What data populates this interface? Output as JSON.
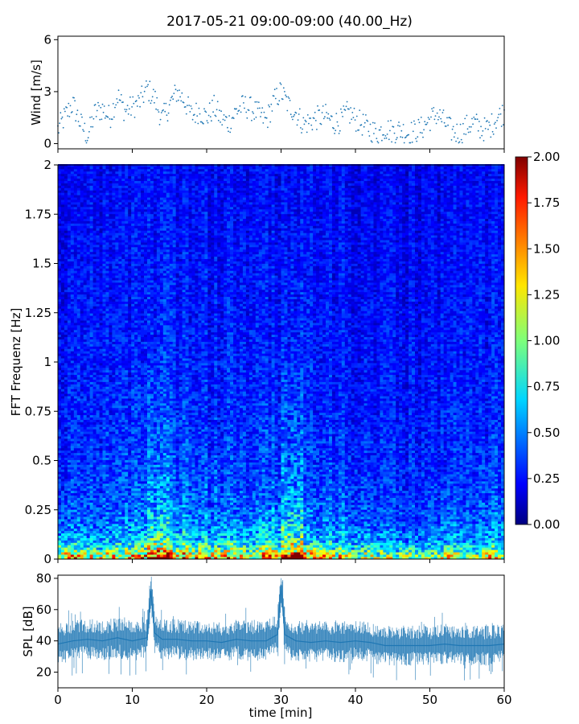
{
  "figure": {
    "title": "2017-05-21 09:00-09:00 (40.00_Hz)"
  },
  "chart_data": [
    {
      "type": "scatter",
      "panel": "wind",
      "ylabel": "Wind [m/s]",
      "xlabel": "",
      "xlim": [
        0,
        60
      ],
      "ylim": [
        -0.3,
        6.2
      ],
      "yticks": [
        0,
        3,
        6
      ],
      "ytick_labels": [
        "0",
        "3",
        "6"
      ],
      "grid": false,
      "marker_color": "#1f77b4",
      "series": [
        {
          "x": [
            0,
            1,
            2,
            3,
            4,
            5,
            6,
            7,
            8,
            9,
            10,
            11,
            12,
            13,
            14,
            15,
            16,
            17,
            18,
            19,
            20,
            21,
            22,
            23,
            24,
            25,
            26,
            27,
            28,
            29,
            30,
            31,
            32,
            33,
            34,
            35,
            36,
            37,
            38,
            39,
            40,
            41,
            42,
            43,
            44,
            45,
            46,
            47,
            48,
            49,
            50,
            51,
            52,
            53,
            54,
            55,
            56,
            57,
            58,
            59,
            60
          ],
          "y": [
            0.8,
            1.6,
            2.3,
            1.2,
            0.4,
            1.8,
            2.0,
            1.5,
            2.8,
            1.9,
            2.1,
            2.4,
            3.2,
            2.6,
            1.4,
            2.2,
            3.0,
            2.5,
            1.6,
            1.9,
            1.5,
            2.1,
            1.4,
            1.2,
            1.9,
            2.2,
            2.0,
            1.7,
            1.3,
            2.4,
            3.0,
            2.2,
            1.8,
            1.1,
            1.3,
            1.5,
            1.6,
            1.2,
            1.3,
            1.8,
            1.4,
            1.1,
            0.8,
            0.6,
            0.9,
            0.7,
            0.8,
            0.6,
            0.7,
            0.9,
            1.4,
            1.7,
            1.2,
            0.7,
            0.6,
            1.0,
            1.2,
            0.8,
            0.9,
            1.5,
            1.8
          ]
        }
      ]
    },
    {
      "type": "heatmap",
      "panel": "spectrogram",
      "ylabel": "FFT Frequenz [Hz]",
      "xlim": [
        0,
        60
      ],
      "ylim": [
        0,
        2
      ],
      "yticks": [
        0,
        0.25,
        0.5,
        0.75,
        1,
        1.25,
        1.5,
        1.75,
        2
      ],
      "ytick_labels": [
        "0",
        "0.25",
        "0.5",
        "0.75",
        "1",
        "1.25",
        "1.5",
        "1.75",
        "2"
      ],
      "colormap": "jet",
      "colorbar": {
        "range": [
          0,
          2
        ],
        "ticks": [
          0,
          0.25,
          0.5,
          0.75,
          1,
          1.25,
          1.5,
          1.75,
          2
        ],
        "tick_labels": [
          "0.00",
          "0.25",
          "0.50",
          "0.75",
          "1.00",
          "1.25",
          "1.50",
          "1.75",
          "2.00"
        ]
      },
      "time_bins_min": [
        0,
        3,
        6,
        9,
        12,
        15,
        18,
        21,
        24,
        27,
        30,
        33,
        36,
        39,
        42,
        45,
        48,
        51,
        54,
        57
      ],
      "freq_bins_hz": [
        0,
        0.02,
        0.05,
        0.1,
        0.2,
        0.3,
        0.5,
        0.75,
        1,
        1.25,
        1.5,
        1.75,
        2
      ],
      "values": [
        [
          1.4,
          1.3,
          0.9,
          0.6,
          0.45,
          0.4,
          0.35,
          0.32,
          0.3,
          0.28,
          0.27,
          0.25,
          0.25
        ],
        [
          1.2,
          1.1,
          0.8,
          0.55,
          0.42,
          0.38,
          0.33,
          0.3,
          0.29,
          0.27,
          0.26,
          0.25,
          0.24
        ],
        [
          1.3,
          1.2,
          0.85,
          0.6,
          0.45,
          0.4,
          0.35,
          0.32,
          0.3,
          0.28,
          0.27,
          0.26,
          0.25
        ],
        [
          1.5,
          1.3,
          0.9,
          0.65,
          0.5,
          0.42,
          0.36,
          0.33,
          0.3,
          0.28,
          0.27,
          0.26,
          0.25
        ],
        [
          2.0,
          1.8,
          1.2,
          0.85,
          0.65,
          0.55,
          0.45,
          0.38,
          0.33,
          0.3,
          0.28,
          0.27,
          0.26
        ],
        [
          1.6,
          1.4,
          1.0,
          0.7,
          0.55,
          0.45,
          0.38,
          0.34,
          0.31,
          0.29,
          0.28,
          0.26,
          0.25
        ],
        [
          1.4,
          1.2,
          0.9,
          0.62,
          0.5,
          0.42,
          0.36,
          0.32,
          0.3,
          0.28,
          0.27,
          0.26,
          0.25
        ],
        [
          1.5,
          1.3,
          0.95,
          0.65,
          0.5,
          0.43,
          0.37,
          0.33,
          0.31,
          0.29,
          0.27,
          0.26,
          0.25
        ],
        [
          1.3,
          1.2,
          0.85,
          0.6,
          0.46,
          0.4,
          0.35,
          0.32,
          0.3,
          0.28,
          0.27,
          0.26,
          0.25
        ],
        [
          1.6,
          1.4,
          1.0,
          0.7,
          0.55,
          0.45,
          0.38,
          0.34,
          0.31,
          0.29,
          0.28,
          0.26,
          0.25
        ],
        [
          2.0,
          1.9,
          1.3,
          0.9,
          0.7,
          0.58,
          0.47,
          0.4,
          0.34,
          0.31,
          0.29,
          0.27,
          0.26
        ],
        [
          1.4,
          1.3,
          0.9,
          0.62,
          0.48,
          0.42,
          0.36,
          0.32,
          0.3,
          0.28,
          0.27,
          0.26,
          0.25
        ],
        [
          1.3,
          1.2,
          0.85,
          0.6,
          0.46,
          0.4,
          0.35,
          0.31,
          0.29,
          0.27,
          0.26,
          0.25,
          0.24
        ],
        [
          1.2,
          1.1,
          0.8,
          0.56,
          0.43,
          0.38,
          0.33,
          0.3,
          0.28,
          0.27,
          0.26,
          0.25,
          0.24
        ],
        [
          1.1,
          1.0,
          0.75,
          0.52,
          0.4,
          0.36,
          0.32,
          0.29,
          0.27,
          0.26,
          0.25,
          0.24,
          0.23
        ],
        [
          1.1,
          1.0,
          0.72,
          0.5,
          0.4,
          0.35,
          0.31,
          0.29,
          0.27,
          0.26,
          0.25,
          0.24,
          0.23
        ],
        [
          1.0,
          0.95,
          0.7,
          0.5,
          0.39,
          0.35,
          0.31,
          0.28,
          0.27,
          0.26,
          0.25,
          0.24,
          0.23
        ],
        [
          1.2,
          1.1,
          0.78,
          0.55,
          0.42,
          0.37,
          0.32,
          0.3,
          0.28,
          0.26,
          0.25,
          0.24,
          0.23
        ],
        [
          1.0,
          0.9,
          0.7,
          0.5,
          0.4,
          0.35,
          0.31,
          0.28,
          0.27,
          0.26,
          0.25,
          0.24,
          0.23
        ],
        [
          1.3,
          1.2,
          0.85,
          0.6,
          0.46,
          0.4,
          0.34,
          0.31,
          0.29,
          0.27,
          0.26,
          0.25,
          0.24
        ]
      ]
    },
    {
      "type": "line",
      "panel": "spl",
      "ylabel": "SPL [dB]",
      "xlabel": "time [min]",
      "xlim": [
        0,
        60
      ],
      "ylim": [
        10,
        82
      ],
      "xticks": [
        0,
        10,
        20,
        30,
        40,
        50,
        60
      ],
      "xtick_labels": [
        "0",
        "10",
        "20",
        "30",
        "40",
        "50",
        "60"
      ],
      "yticks": [
        20,
        40,
        60,
        80
      ],
      "ytick_labels": [
        "20",
        "40",
        "60",
        "80"
      ],
      "grid": false,
      "line_color": "#1f77b4",
      "series": [
        {
          "x": [
            0,
            2,
            4,
            6,
            8,
            10,
            12,
            12.5,
            13,
            14,
            16,
            18,
            20,
            22,
            24,
            26,
            28,
            29.5,
            30,
            30.5,
            32,
            34,
            36,
            38,
            40,
            42,
            44,
            46,
            48,
            50,
            52,
            54,
            56,
            58,
            60
          ],
          "y": [
            38,
            40,
            41,
            40,
            42,
            40,
            42,
            72,
            45,
            41,
            41,
            40,
            40,
            39,
            41,
            40,
            40,
            44,
            76,
            44,
            40,
            39,
            40,
            39,
            40,
            39,
            37,
            37,
            37,
            37,
            38,
            37,
            37,
            37,
            38
          ]
        }
      ]
    }
  ]
}
